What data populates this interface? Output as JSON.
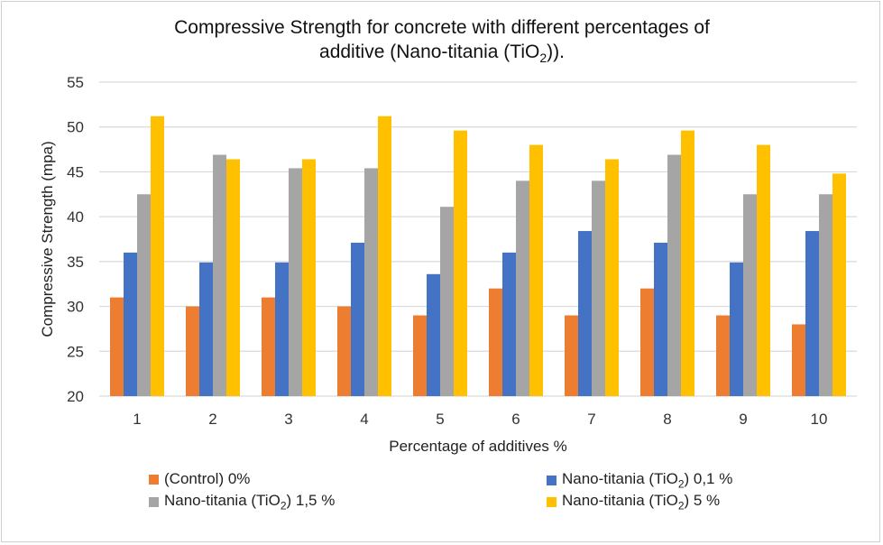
{
  "chart_data": {
    "type": "bar",
    "title_line1": "Compressive Strength for concrete with different percentages of",
    "title_line2_pre": "additive  (Nano-titania (TiO",
    "title_line2_sub": "2",
    "title_line2_post": ")).",
    "xlabel": "Percentage of additives %",
    "ylabel": "Compressive Strength (mpa)",
    "ylim": [
      20,
      55
    ],
    "yticks": [
      "20",
      "25",
      "30",
      "35",
      "40",
      "45",
      "50",
      "55"
    ],
    "categories": [
      "1",
      "2",
      "3",
      "4",
      "5",
      "6",
      "7",
      "8",
      "9",
      "10"
    ],
    "grid": true,
    "legend_position": "bottom",
    "series": [
      {
        "name_pre": "(Control) 0%",
        "name_sub": "",
        "name_post": "",
        "color": "#ED7D31",
        "values": [
          31,
          30,
          31,
          30,
          29,
          32,
          29,
          32,
          29,
          28
        ]
      },
      {
        "name_pre": "Nano-titania (TiO",
        "name_sub": "2",
        "name_post": ") 0,1 %",
        "color": "#4472C4",
        "values": [
          36,
          34.9,
          34.9,
          37.1,
          33.6,
          36,
          38.4,
          37.1,
          34.9,
          38.4
        ]
      },
      {
        "name_pre": "Nano-titania (TiO",
        "name_sub": "2",
        "name_post": ") 1,5 %",
        "color": "#A5A5A5",
        "values": [
          42.5,
          46.9,
          45.4,
          45.4,
          41.1,
          44,
          44,
          46.9,
          42.5,
          42.5
        ]
      },
      {
        "name_pre": "Nano-titania (TiO",
        "name_sub": "2",
        "name_post": ") 5 %",
        "color": "#FFC000",
        "values": [
          51.2,
          46.4,
          46.4,
          51.2,
          49.6,
          48,
          46.4,
          49.6,
          48,
          44.8
        ]
      }
    ]
  }
}
